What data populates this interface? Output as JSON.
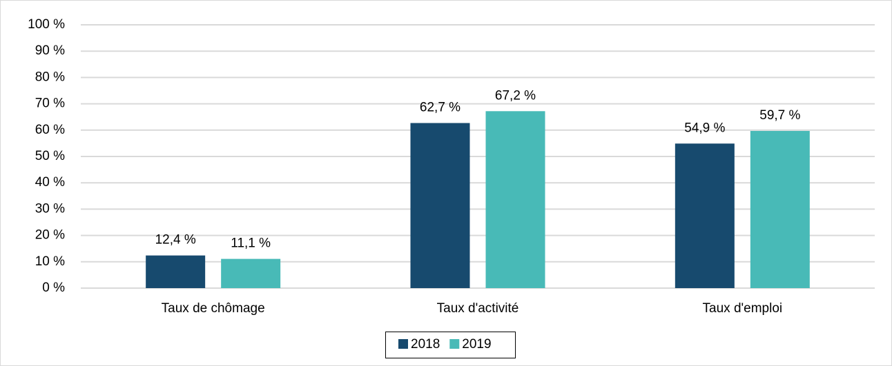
{
  "chart_data": {
    "type": "bar",
    "categories": [
      "Taux de chômage",
      "Taux d'activité",
      "Taux d'emploi"
    ],
    "series": [
      {
        "name": "2018",
        "color": "#174a6e",
        "values": [
          12.4,
          62.7,
          54.9
        ],
        "value_labels": [
          "12,4 %",
          "62,7 %",
          "54,9 %"
        ]
      },
      {
        "name": "2019",
        "color": "#48bab7",
        "values": [
          11.1,
          67.2,
          59.7
        ],
        "value_labels": [
          "11,1 %",
          "67,2 %",
          "59,7 %"
        ]
      }
    ],
    "ylim": [
      0,
      100
    ],
    "yticks": [
      {
        "value": 0,
        "label": "0 %"
      },
      {
        "value": 10,
        "label": "10 %"
      },
      {
        "value": 20,
        "label": "20 %"
      },
      {
        "value": 30,
        "label": "30 %"
      },
      {
        "value": 40,
        "label": "40 %"
      },
      {
        "value": 50,
        "label": "50 %"
      },
      {
        "value": 60,
        "label": "60 %"
      },
      {
        "value": 70,
        "label": "70 %"
      },
      {
        "value": 80,
        "label": "80 %"
      },
      {
        "value": 90,
        "label": "90 %"
      },
      {
        "value": 100,
        "label": "100 %"
      }
    ],
    "grid": true,
    "legend": "bottom"
  }
}
